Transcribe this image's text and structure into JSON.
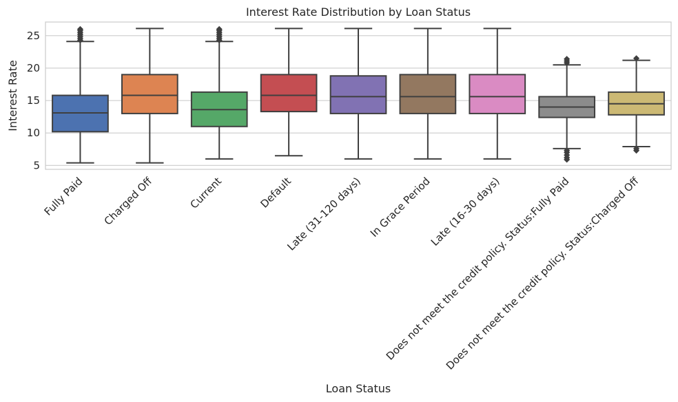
{
  "chart_data": {
    "type": "box",
    "title": "Interest Rate Distribution by Loan Status",
    "xlabel": "Loan Status",
    "ylabel": "Interest Rate",
    "ylim": [
      4.4,
      27.1
    ],
    "yticks": [
      5,
      10,
      15,
      20,
      25
    ],
    "grid": "horizontal",
    "categories": [
      "Fully Paid",
      "Charged Off",
      "Current",
      "Default",
      "Late (31-120 days)",
      "In Grace Period",
      "Late (16-30 days)",
      "Does not meet the credit policy. Status:Fully Paid",
      "Does not meet the credit policy. Status:Charged Off"
    ],
    "colors": [
      "#4c72b0",
      "#dd8452",
      "#55a868",
      "#c44e52",
      "#8172b3",
      "#937860",
      "#da8bc3",
      "#8c8c8c",
      "#ccb974"
    ],
    "boxes": [
      {
        "whisker_low": 5.4,
        "q1": 10.2,
        "median": 13.1,
        "q3": 15.8,
        "whisker_high": 24.1,
        "outliers_high": [
          24.3,
          24.6,
          24.9,
          25.2,
          25.5,
          25.8,
          26.0
        ],
        "outliers_low": []
      },
      {
        "whisker_low": 5.4,
        "q1": 13.0,
        "median": 15.8,
        "q3": 19.0,
        "whisker_high": 26.1,
        "outliers_high": [],
        "outliers_low": []
      },
      {
        "whisker_low": 6.0,
        "q1": 11.0,
        "median": 13.6,
        "q3": 16.3,
        "whisker_high": 24.1,
        "outliers_high": [
          24.3,
          24.6,
          24.9,
          25.2,
          25.5,
          25.8,
          26.0
        ],
        "outliers_low": []
      },
      {
        "whisker_low": 6.5,
        "q1": 13.3,
        "median": 15.8,
        "q3": 19.0,
        "whisker_high": 26.1,
        "outliers_high": [],
        "outliers_low": []
      },
      {
        "whisker_low": 6.0,
        "q1": 13.0,
        "median": 15.6,
        "q3": 18.8,
        "whisker_high": 26.1,
        "outliers_high": [],
        "outliers_low": []
      },
      {
        "whisker_low": 6.0,
        "q1": 13.0,
        "median": 15.6,
        "q3": 19.0,
        "whisker_high": 26.1,
        "outliers_high": [],
        "outliers_low": []
      },
      {
        "whisker_low": 6.0,
        "q1": 13.0,
        "median": 15.6,
        "q3": 19.0,
        "whisker_high": 26.1,
        "outliers_high": [],
        "outliers_low": []
      },
      {
        "whisker_low": 7.6,
        "q1": 12.4,
        "median": 14.0,
        "q3": 15.6,
        "whisker_high": 20.5,
        "outliers_high": [
          20.8,
          21.1,
          21.4
        ],
        "outliers_low": [
          5.9,
          6.2,
          6.6,
          7.0,
          7.3
        ]
      },
      {
        "whisker_low": 7.9,
        "q1": 12.8,
        "median": 14.5,
        "q3": 16.3,
        "whisker_high": 21.2,
        "outliers_high": [
          21.5
        ],
        "outliers_low": [
          7.3,
          7.6
        ]
      }
    ]
  }
}
